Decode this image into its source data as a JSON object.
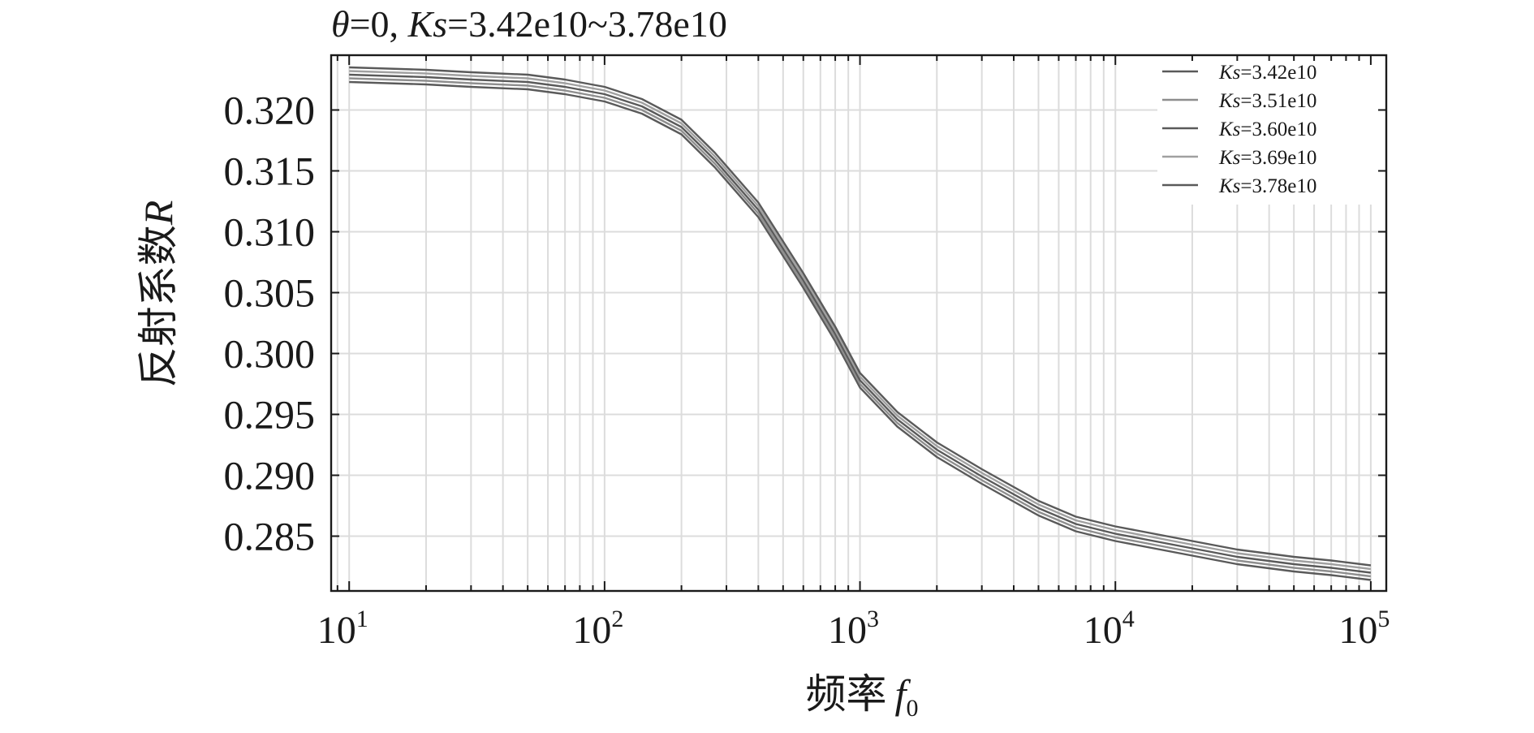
{
  "chart_data": {
    "type": "line",
    "title": {
      "theta_symbol": "θ",
      "theta_rest": "=0, ",
      "ks_symbol": "Ks",
      "ks_rest": "=3.42e10~3.78e10"
    },
    "xlabel": {
      "text": "频率",
      "var": "f",
      "sub": "0"
    },
    "ylabel": {
      "text": "反射系数",
      "var": "R"
    },
    "x_scale": "log",
    "xlim": [
      8.5,
      115000
    ],
    "ylim": [
      0.2805,
      0.3245
    ],
    "x_ticks": [
      {
        "value": 10,
        "base": "10",
        "exp": "1"
      },
      {
        "value": 100,
        "base": "10",
        "exp": "2"
      },
      {
        "value": 1000,
        "base": "10",
        "exp": "3"
      },
      {
        "value": 10000,
        "base": "10",
        "exp": "4"
      },
      {
        "value": 100000,
        "base": "10",
        "exp": "5"
      }
    ],
    "y_ticks": [
      "0.320",
      "0.315",
      "0.310",
      "0.305",
      "0.300",
      "0.295",
      "0.290",
      "0.285"
    ],
    "grid": true,
    "legend_position": "top-right",
    "line_colors": [
      "#5a5a5a",
      "#8e8e8e",
      "#5a5a5a",
      "#a0a0a0",
      "#5a5a5a"
    ],
    "x": [
      10,
      20,
      30,
      50,
      70,
      100,
      140,
      200,
      270,
      400,
      600,
      800,
      1000,
      1400,
      2000,
      3000,
      5000,
      7000,
      10000,
      20000,
      30000,
      50000,
      70000,
      100000
    ],
    "series": [
      {
        "legend_symbol": "Ks",
        "legend_rest": "=3.42e10",
        "values": [
          0.3223,
          0.3221,
          0.3219,
          0.3217,
          0.3213,
          0.3207,
          0.3197,
          0.318,
          0.3153,
          0.3112,
          0.3054,
          0.301,
          0.2972,
          0.294,
          0.2915,
          0.2893,
          0.2867,
          0.2854,
          0.2846,
          0.2834,
          0.2827,
          0.2821,
          0.2818,
          0.2814
        ]
      },
      {
        "legend_symbol": "Ks",
        "legend_rest": "=3.51e10",
        "values": [
          0.3226,
          0.3224,
          0.3222,
          0.322,
          0.3216,
          0.321,
          0.32,
          0.3183,
          0.3156,
          0.3115,
          0.3057,
          0.3013,
          0.2975,
          0.2943,
          0.2918,
          0.2896,
          0.287,
          0.2857,
          0.2849,
          0.2837,
          0.283,
          0.2824,
          0.2821,
          0.2817
        ]
      },
      {
        "legend_symbol": "Ks",
        "legend_rest": "=3.60e10",
        "values": [
          0.3229,
          0.3227,
          0.3225,
          0.3223,
          0.3219,
          0.3213,
          0.3203,
          0.3186,
          0.3159,
          0.3118,
          0.306,
          0.3016,
          0.2978,
          0.2946,
          0.2921,
          0.2899,
          0.2873,
          0.286,
          0.2852,
          0.284,
          0.2833,
          0.2827,
          0.2824,
          0.282
        ]
      },
      {
        "legend_symbol": "Ks",
        "legend_rest": "=3.69e10",
        "values": [
          0.3232,
          0.323,
          0.3228,
          0.3226,
          0.3222,
          0.3216,
          0.3206,
          0.3189,
          0.3162,
          0.3121,
          0.3063,
          0.3019,
          0.2981,
          0.2949,
          0.2924,
          0.2902,
          0.2876,
          0.2863,
          0.2855,
          0.2843,
          0.2836,
          0.283,
          0.2827,
          0.2823
        ]
      },
      {
        "legend_symbol": "Ks",
        "legend_rest": "=3.78e10",
        "values": [
          0.3235,
          0.3233,
          0.3231,
          0.3229,
          0.3225,
          0.3219,
          0.3209,
          0.3192,
          0.3165,
          0.3124,
          0.3066,
          0.3022,
          0.2984,
          0.2952,
          0.2927,
          0.2905,
          0.2879,
          0.2866,
          0.2858,
          0.2846,
          0.2839,
          0.2833,
          0.283,
          0.2826
        ]
      }
    ]
  }
}
